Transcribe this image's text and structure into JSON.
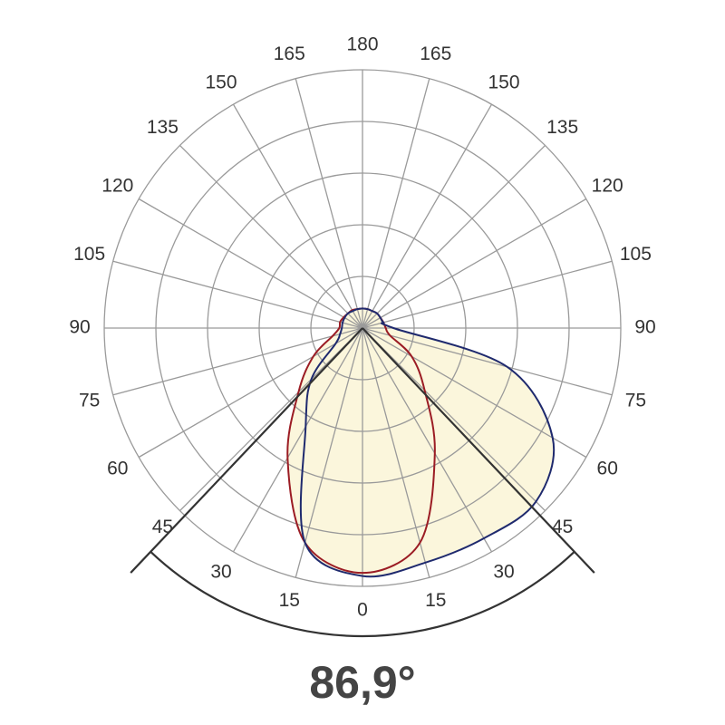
{
  "chart_data": {
    "type": "polar",
    "angle_ticks": [
      {
        "value": -165,
        "label": "165"
      },
      {
        "value": -150,
        "label": "150"
      },
      {
        "value": -135,
        "label": "135"
      },
      {
        "value": -120,
        "label": "120"
      },
      {
        "value": -105,
        "label": "105"
      },
      {
        "value": -90,
        "label": "90"
      },
      {
        "value": -75,
        "label": "75"
      },
      {
        "value": -60,
        "label": "60"
      },
      {
        "value": -45,
        "label": "45"
      },
      {
        "value": -30,
        "label": "30"
      },
      {
        "value": -15,
        "label": "15"
      },
      0,
      15,
      30,
      45,
      60,
      75,
      90,
      105,
      120,
      135,
      150,
      165,
      180
    ],
    "rlim": [
      0,
      5
    ],
    "rings": [
      1,
      2,
      3,
      4,
      5
    ],
    "fill_color": "#fbf6dc",
    "angles": [
      -180,
      -165,
      -150,
      -135,
      -120,
      -105,
      -90,
      -75,
      -60,
      -45,
      -30,
      -15,
      0,
      15,
      30,
      45,
      60,
      75,
      90,
      105,
      120,
      135,
      150,
      165,
      180
    ],
    "series": [
      {
        "color": "#9b1c24",
        "values": [
          0.38,
          0.38,
          0.4,
          0.4,
          0.42,
          0.45,
          0.45,
          0.6,
          1.1,
          1.75,
          2.9,
          4.3,
          4.74,
          4.3,
          2.8,
          1.7,
          1.1,
          0.55,
          0.45,
          0.42,
          0.4,
          0.4,
          0.38,
          0.38,
          0.38
        ]
      },
      {
        "color": "#1f2a6e",
        "values": [
          0.38,
          0.38,
          0.38,
          0.4,
          0.4,
          0.4,
          0.4,
          0.45,
          0.6,
          1.4,
          2.2,
          4.3,
          4.8,
          4.7,
          4.7,
          4.75,
          4.25,
          2.9,
          0.6,
          0.42,
          0.4,
          0.4,
          0.38,
          0.38,
          0.38
        ]
      }
    ],
    "beam_angle": {
      "value": 86.9,
      "label": "86,9°"
    },
    "beam_color": "#333333"
  }
}
